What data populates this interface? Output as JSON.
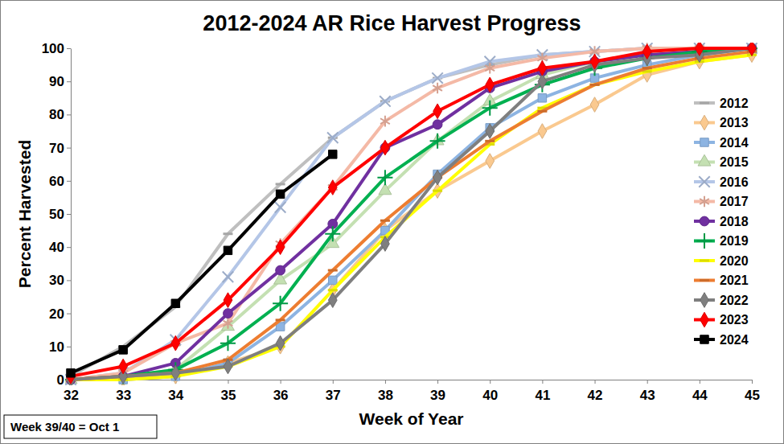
{
  "chart_data": {
    "type": "line",
    "title": "2012-2024 AR Rice Harvest Progress",
    "x_label": "Week of Year",
    "y_label": "Percent Harvested",
    "annotation": "Week 39/40 = Oct 1",
    "x": [
      32,
      33,
      34,
      35,
      36,
      37,
      38,
      39,
      40,
      41,
      42,
      43,
      44,
      45
    ],
    "xlim": [
      32,
      45
    ],
    "xticks": [
      32,
      33,
      34,
      35,
      36,
      37,
      38,
      39,
      40,
      41,
      42,
      43,
      44,
      45
    ],
    "ylim": [
      0,
      100
    ],
    "yticks": [
      0,
      10,
      20,
      30,
      40,
      50,
      60,
      70,
      80,
      90,
      100
    ],
    "grid": false,
    "legend": "right",
    "series": [
      {
        "name": "2012",
        "color": "#bfbfbf",
        "marker": "dash",
        "line_style": "solid",
        "values": [
          1,
          10,
          22,
          44,
          59,
          73,
          84,
          91,
          95,
          98,
          99,
          100,
          100,
          100
        ]
      },
      {
        "name": "2013",
        "color": "#fac98f",
        "marker": "diamond",
        "line_style": "solid",
        "values": [
          0,
          0,
          1,
          5,
          10,
          27,
          45,
          57,
          66,
          75,
          83,
          92,
          96,
          98
        ]
      },
      {
        "name": "2014",
        "color": "#8db4e2",
        "marker": "square",
        "line_style": "solid",
        "values": [
          0,
          0,
          1,
          5,
          16,
          30,
          45,
          62,
          76,
          85,
          91,
          95,
          98,
          100
        ]
      },
      {
        "name": "2015",
        "color": "#c4e0b2",
        "marker": "triangle",
        "line_style": "solid",
        "values": [
          0,
          1,
          3,
          16,
          30,
          41,
          57,
          72,
          84,
          92,
          96,
          98,
          99,
          100
        ]
      },
      {
        "name": "2016",
        "color": "#b4c6e7",
        "marker": "x",
        "line_style": "solid",
        "values": [
          0,
          2,
          12,
          31,
          52,
          73,
          84,
          91,
          96,
          98,
          99,
          100,
          100,
          100
        ]
      },
      {
        "name": "2017",
        "color": "#f4b9a6",
        "marker": "asterisk",
        "line_style": "solid",
        "values": [
          0,
          2,
          11,
          17,
          41,
          58,
          78,
          88,
          94,
          97,
          99,
          100,
          100,
          100
        ]
      },
      {
        "name": "2018",
        "color": "#7030a0",
        "marker": "circle",
        "line_style": "solid",
        "values": [
          0,
          1,
          5,
          20,
          33,
          47,
          70,
          77,
          88,
          93,
          96,
          98,
          99,
          100
        ]
      },
      {
        "name": "2019",
        "color": "#00b050",
        "marker": "plus",
        "line_style": "solid",
        "values": [
          0,
          1,
          3,
          11,
          23,
          44,
          61,
          72,
          82,
          89,
          94,
          97,
          99,
          100
        ]
      },
      {
        "name": "2020",
        "color": "#ffff00",
        "marker": "dash",
        "line_style": "solid",
        "values": [
          0,
          0,
          1,
          4,
          10,
          27,
          43,
          57,
          71,
          82,
          89,
          93,
          96,
          98
        ]
      },
      {
        "name": "2021",
        "color": "#ed7d31",
        "marker": "dash",
        "line_style": "solid",
        "values": [
          0,
          1,
          2,
          6,
          18,
          33,
          48,
          61,
          72,
          81,
          89,
          94,
          97,
          99
        ]
      },
      {
        "name": "2022",
        "color": "#7f7f7f",
        "marker": "diamond",
        "line_style": "solid",
        "values": [
          0,
          1,
          2,
          4,
          11,
          24,
          41,
          61,
          75,
          90,
          95,
          97,
          98,
          100
        ]
      },
      {
        "name": "2023",
        "color": "#ff0000",
        "marker": "diamond",
        "line_style": "solid",
        "values": [
          1,
          4,
          11,
          24,
          40,
          58,
          70,
          81,
          89,
          94,
          96,
          99,
          100,
          100
        ]
      },
      {
        "name": "2024",
        "color": "#000000",
        "marker": "square",
        "line_style": "solid",
        "values": [
          2,
          9,
          23,
          39,
          56,
          68,
          null,
          null,
          null,
          null,
          null,
          null,
          null,
          null
        ]
      }
    ]
  }
}
